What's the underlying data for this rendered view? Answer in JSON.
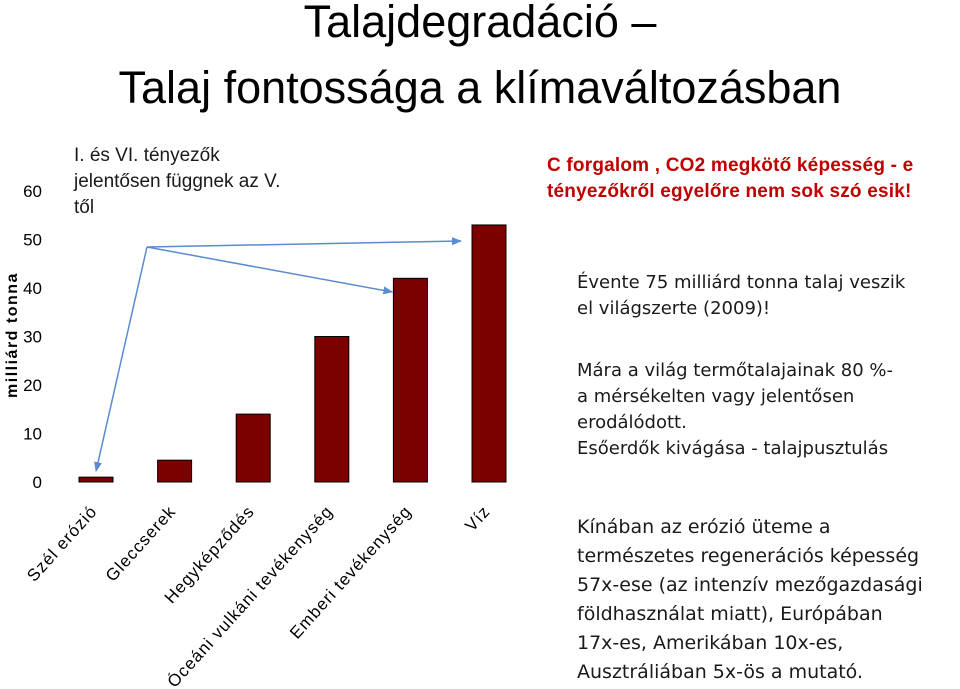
{
  "title": {
    "line1": "Talajdegradáció –",
    "line2": "Talaj fontossága a klímaváltozásban"
  },
  "chart_note": [
    "I. és VI. tényezők",
    "jelentősen függnek az V.",
    "től"
  ],
  "c_note": [
    "C forgalom , CO2 megkötő képesség - e",
    "tényezőkről egyelőre nem sok szó esik!"
  ],
  "paragraph_1": [
    "Évente 75 milliárd tonna talaj veszik",
    "el világszerte (2009)!"
  ],
  "paragraph_2": [
    "Mára a világ termőtalajainak 80 %-",
    "a mérsékelten vagy jelentősen",
    "erodálódott.",
    "Esőerdők kivágása - talajpusztulás"
  ],
  "paragraph_3": [
    "Kínában az erózió üteme a",
    "természetes regenerációs képesség",
    "57x-ese (az intenzív mezőgazdasági",
    "földhasználat miatt), Európában",
    "17x-es, Amerikában 10x-es,",
    "Ausztráliában 5x-ös a mutató."
  ],
  "colors": {
    "bar": "#7b0000",
    "arrow": "#5b8bd0",
    "c_note_text": "#c00000"
  },
  "chart_data": {
    "type": "bar",
    "categories": [
      "Szél erózió",
      "Gleccserek",
      "Hegyképződés",
      "Óceáni vulkáni tevékenység",
      "Emberi tevékenység",
      "Víz"
    ],
    "values": [
      1,
      4.5,
      14,
      30,
      42,
      53
    ],
    "ylabel": "milliárd tonna",
    "yticks": [
      0,
      10,
      20,
      30,
      40,
      50,
      60
    ],
    "ylim": [
      0,
      60
    ],
    "grid": false,
    "legend": "none"
  }
}
